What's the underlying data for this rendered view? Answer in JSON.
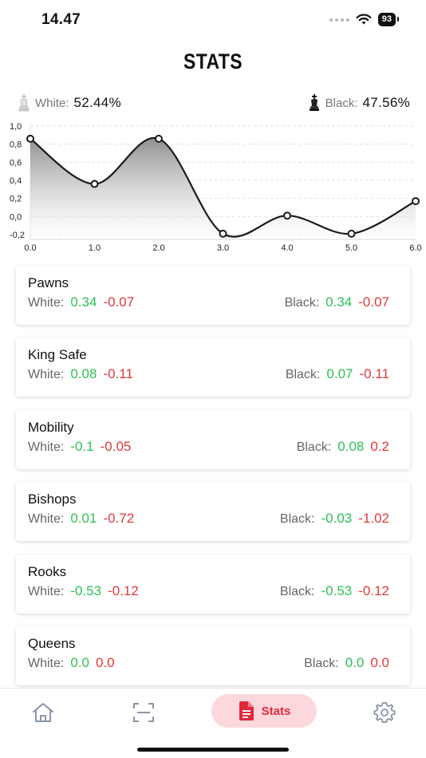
{
  "status_bar": {
    "time": "14.47",
    "battery": "93"
  },
  "page": {
    "title": "STATS"
  },
  "summary": {
    "white_label": "White:",
    "white_value": "52.44%",
    "black_label": "Black:",
    "black_value": "47.56%"
  },
  "chart_data": {
    "type": "area",
    "x": [
      0,
      1,
      2,
      3,
      4,
      5,
      6
    ],
    "values": [
      0.86,
      0.36,
      0.86,
      -0.19,
      0.01,
      -0.19,
      0.17
    ],
    "ylim": [
      -0.2,
      1.0
    ],
    "xlim": [
      0,
      6
    ],
    "yticks": [
      "1,0",
      "0,8",
      "0,6",
      "0,4",
      "0,2",
      "0,0",
      "-0,2"
    ],
    "yticks_values": [
      1.0,
      0.8,
      0.6,
      0.4,
      0.2,
      0.0,
      -0.2
    ],
    "xticks": [
      "0.0",
      "1.0",
      "2.0",
      "3.0",
      "4.0",
      "5.0",
      "6.0"
    ],
    "grid": "dashed horizontal",
    "line_color": "#1a1a1a",
    "fill_color_top": "#888888",
    "fill_color_bottom": "#ffffff"
  },
  "cards": [
    {
      "title": "Pawns",
      "white_label": "White:",
      "white_pos": "0.34",
      "white_neg": "-0.07",
      "black_label": "Black:",
      "black_pos": "0.34",
      "black_neg": "-0.07"
    },
    {
      "title": "King Safe",
      "white_label": "White:",
      "white_pos": "0.08",
      "white_neg": "-0.11",
      "black_label": "Black:",
      "black_pos": "0.07",
      "black_neg": "-0.11"
    },
    {
      "title": "Mobility",
      "white_label": "White:",
      "white_pos": "-0.1",
      "white_neg": "-0.05",
      "black_label": "Black:",
      "black_pos": "0.08",
      "black_neg": "0.2"
    },
    {
      "title": "Bishops",
      "white_label": "White:",
      "white_pos": "0.01",
      "white_neg": "-0.72",
      "black_label": "Black:",
      "black_pos": "-0.03",
      "black_neg": "-1.02"
    },
    {
      "title": "Rooks",
      "white_label": "White:",
      "white_pos": "-0.53",
      "white_neg": "-0.12",
      "black_label": "Black:",
      "black_pos": "-0.53",
      "black_neg": "-0.12"
    },
    {
      "title": "Queens",
      "white_label": "White:",
      "white_pos": "0.0",
      "white_neg": "0.0",
      "black_label": "Black:",
      "black_pos": "0.0",
      "black_neg": "0.0"
    }
  ],
  "nav": {
    "home_icon": "home-icon",
    "scan_icon": "scan-icon",
    "stats_icon": "document-icon",
    "stats_label": "Stats",
    "settings_icon": "gear-icon",
    "active_color": "#e2283d",
    "active_bg": "#fcd8dc"
  }
}
